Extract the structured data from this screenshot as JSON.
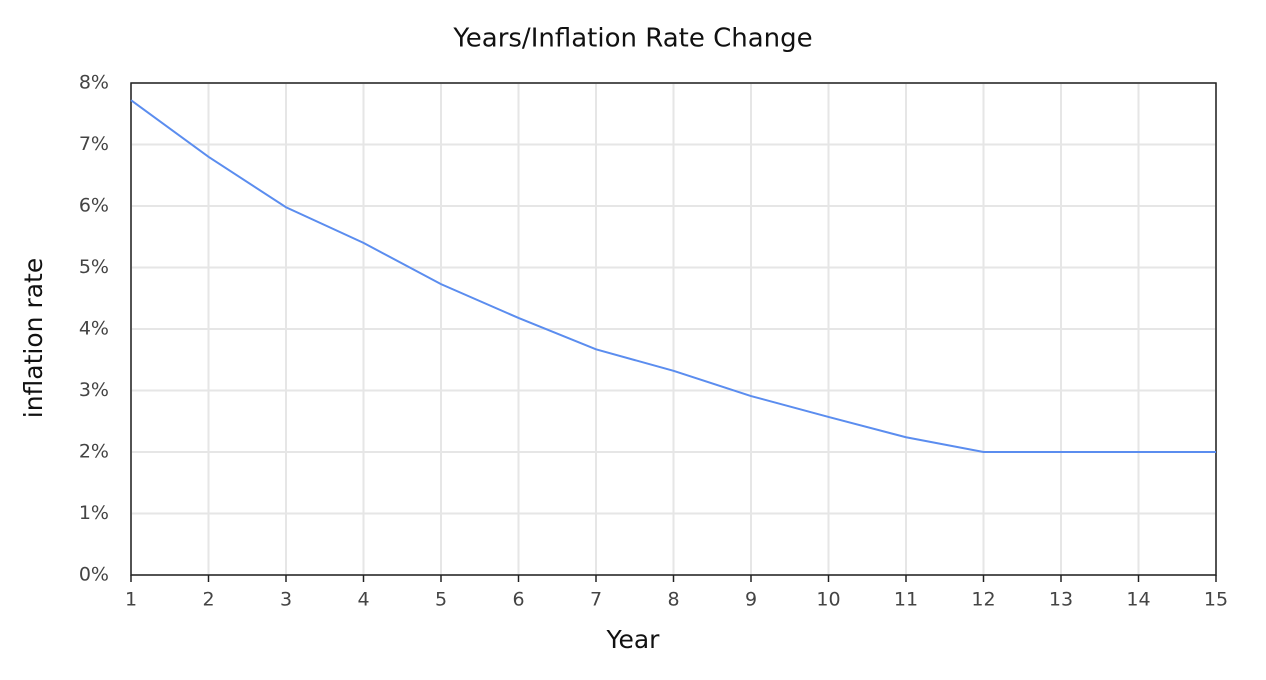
{
  "chart_data": {
    "type": "line",
    "title": "Years/Inflation Rate Change",
    "x_label": "Year",
    "y_label": "inflation rate",
    "x": [
      1,
      2,
      3,
      4,
      5,
      6,
      7,
      8,
      9,
      10,
      11,
      12,
      13,
      14,
      15
    ],
    "series": [
      {
        "name": "inflation rate",
        "color": "#5b8def",
        "values": [
          7.72,
          6.8,
          5.98,
          5.4,
          4.73,
          4.18,
          3.67,
          3.32,
          2.91,
          2.57,
          2.24,
          2.0,
          2.0,
          2.0,
          2.0
        ]
      }
    ],
    "xlim": [
      1,
      15
    ],
    "xticks": [
      1,
      2,
      3,
      4,
      5,
      6,
      7,
      8,
      9,
      10,
      11,
      12,
      13,
      14,
      15
    ],
    "ylim": [
      0,
      8
    ],
    "yticks": [
      {
        "value": 0,
        "label": "0%"
      },
      {
        "value": 1,
        "label": "1%"
      },
      {
        "value": 2,
        "label": "2%"
      },
      {
        "value": 3,
        "label": "3%"
      },
      {
        "value": 4,
        "label": "4%"
      },
      {
        "value": 5,
        "label": "5%"
      },
      {
        "value": 6,
        "label": "6%"
      },
      {
        "value": 7,
        "label": "7%"
      },
      {
        "value": 8,
        "label": "8%"
      }
    ],
    "grid": true
  }
}
